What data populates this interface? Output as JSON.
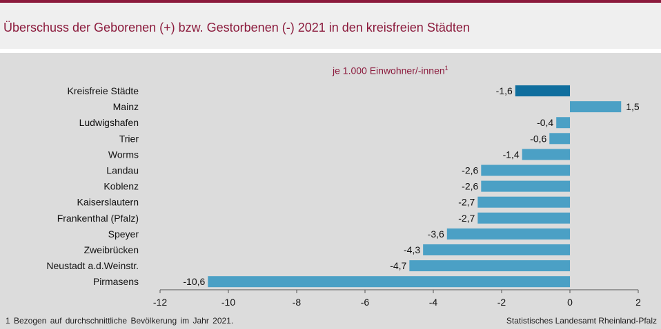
{
  "header": {
    "title": "Überschuss der Geborenen (+) bzw. Gestorbenen (-) 2021 in den kreisfreien Städten"
  },
  "chart_data": {
    "type": "bar",
    "orientation": "horizontal",
    "subtitle": "je 1.000 Einwohner/-innen",
    "subtitle_footnote_marker": "1",
    "categories": [
      "Kreisfreie Städte",
      "Mainz",
      "Ludwigshafen",
      "Trier",
      "Worms",
      "Landau",
      "Koblenz",
      "Kaiserslautern",
      "Frankenthal (Pfalz)",
      "Speyer",
      "Zweibrücken",
      "Neustadt a.d.Weinstr.",
      "Pirmasens"
    ],
    "values": [
      -1.6,
      1.5,
      -0.4,
      -0.6,
      -1.4,
      -2.6,
      -2.6,
      -2.7,
      -2.7,
      -3.6,
      -4.3,
      -4.7,
      -10.6
    ],
    "value_labels": [
      "-1,6",
      "1,5",
      "-0,4",
      "-0,6",
      "-1,4",
      "-2,6",
      "-2,6",
      "-2,7",
      "-2,7",
      "-3,6",
      "-4,3",
      "-4,7",
      "-10,6"
    ],
    "highlight_index": 0,
    "xlim": [
      -12,
      2
    ],
    "xticks": [
      -12,
      -10,
      -8,
      -6,
      -4,
      -2,
      0,
      2
    ],
    "xtick_labels": [
      "-12",
      "-10",
      "-8",
      "-6",
      "-4",
      "-2",
      "0",
      "2"
    ],
    "colors": {
      "bar": "#4ba0c5",
      "highlight": "#0f6e9e",
      "axis": "#555555"
    }
  },
  "footer": {
    "footnote": "1 Bezogen auf durchschnittliche Bevölkerung im Jahr 2021.",
    "source": "Statistisches Landesamt Rheinland-Pfalz"
  }
}
